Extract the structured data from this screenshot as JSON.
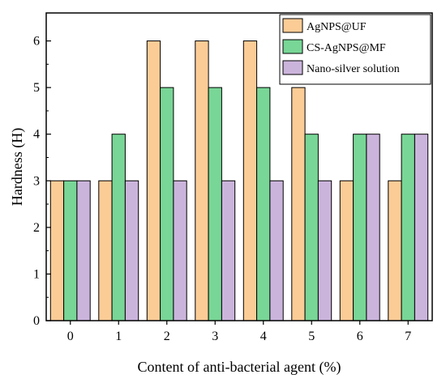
{
  "chart_data": {
    "type": "bar",
    "title": "",
    "xlabel": "Content of anti-bacterial agent (%)",
    "ylabel": "Hardness (H)",
    "categories": [
      "0",
      "1",
      "2",
      "3",
      "4",
      "5",
      "6",
      "7"
    ],
    "ylim": [
      0,
      6.6
    ],
    "yticks": [
      "0",
      "1",
      "2",
      "3",
      "4",
      "5",
      "6"
    ],
    "grid": false,
    "legend_position": "top-right",
    "series": [
      {
        "name": "AgNPS@UF",
        "color": "#FCCC96",
        "values": [
          3,
          3,
          6,
          6,
          6,
          5,
          3,
          3
        ]
      },
      {
        "name": "CS-AgNPS@MF",
        "color": "#78D696",
        "values": [
          3,
          4,
          5,
          5,
          5,
          4,
          4,
          4
        ]
      },
      {
        "name": "Nano-silver solution",
        "color": "#CBB4DC",
        "values": [
          3,
          3,
          3,
          3,
          3,
          3,
          4,
          4
        ]
      }
    ]
  }
}
